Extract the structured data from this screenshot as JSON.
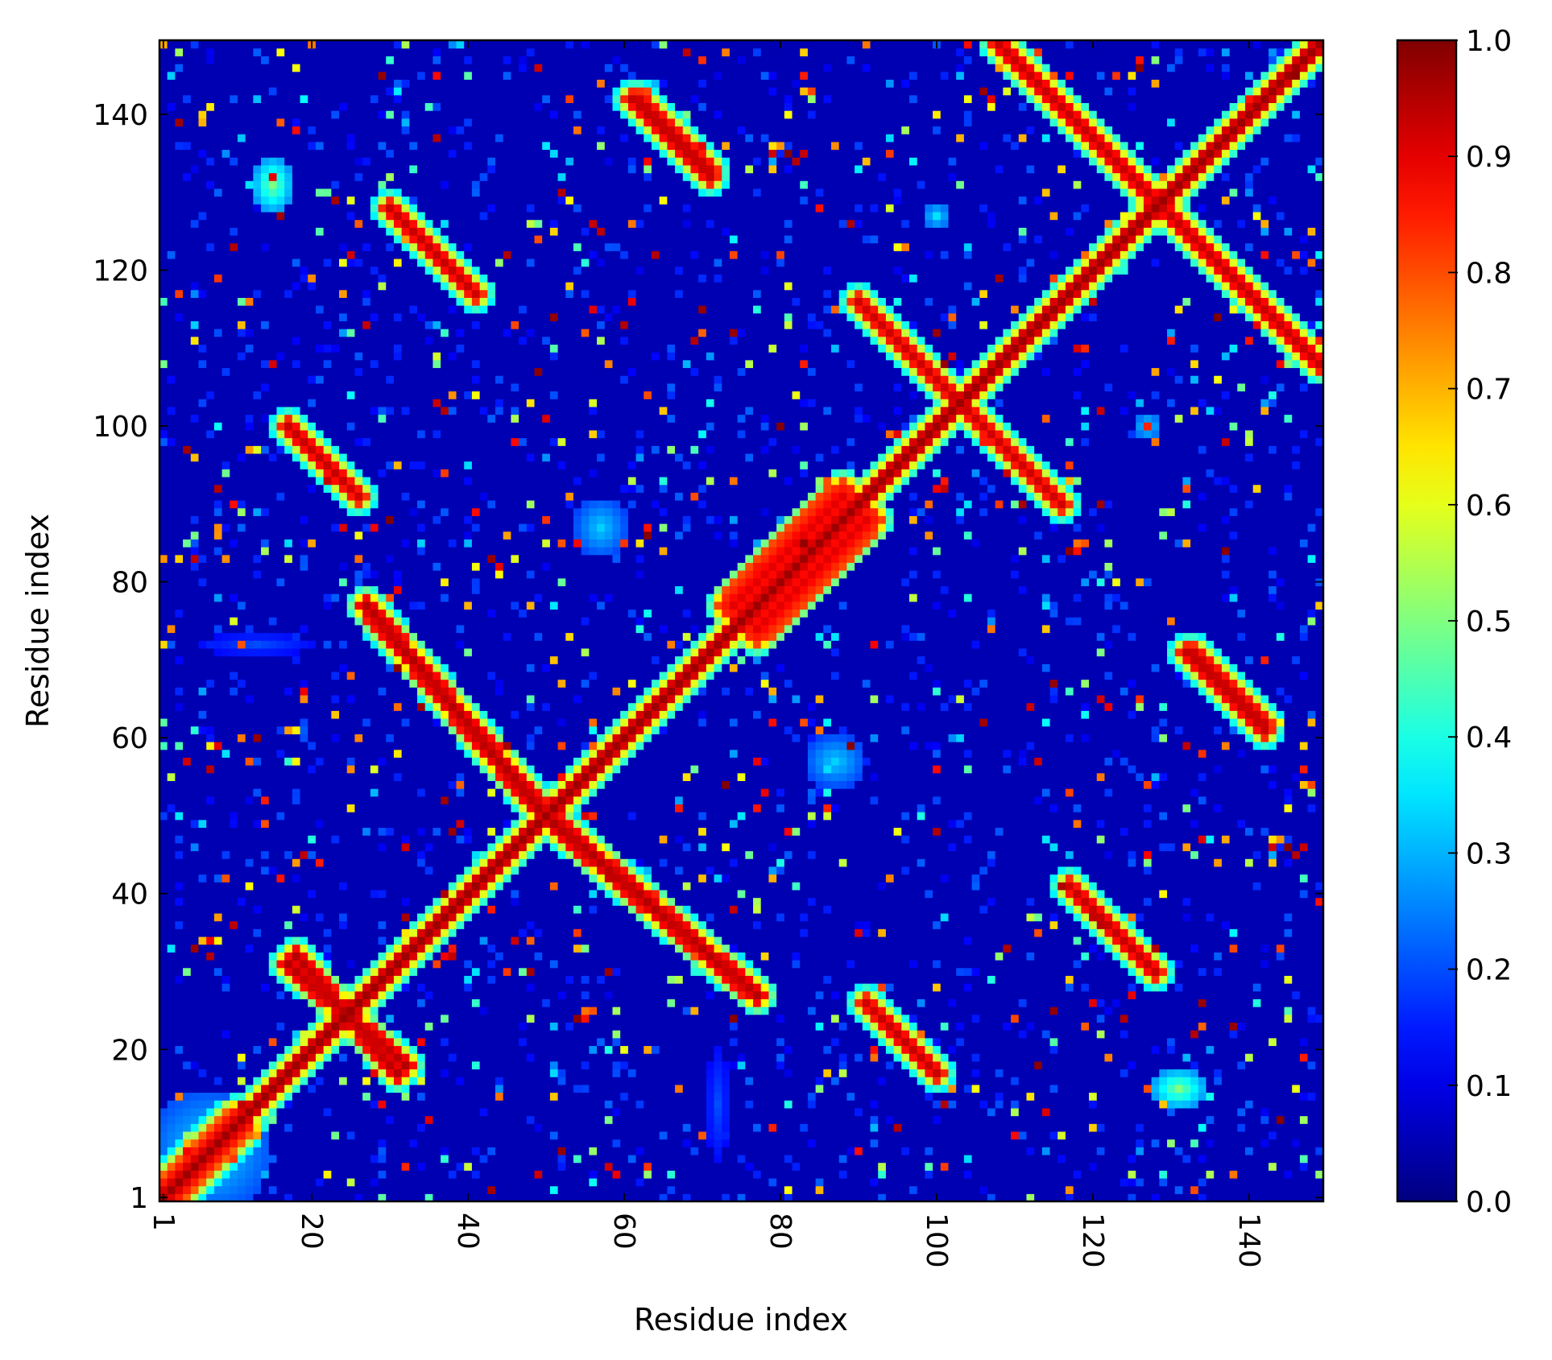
{
  "chart_data": {
    "type": "heatmap",
    "title": "",
    "xlabel": "Residue index",
    "ylabel": "Residue index",
    "n": 149,
    "xlim": [
      1,
      149
    ],
    "ylim": [
      1,
      149
    ],
    "x_ticks": [
      1,
      20,
      40,
      60,
      80,
      100,
      120,
      140
    ],
    "y_ticks": [
      1,
      20,
      40,
      60,
      80,
      100,
      120,
      140
    ],
    "colorbar": {
      "colormap": "jet",
      "range": [
        0.0,
        1.0
      ],
      "ticks": [
        "0.0",
        "0.1",
        "0.2",
        "0.3",
        "0.4",
        "0.5",
        "0.6",
        "0.7",
        "0.8",
        "0.9",
        "1.0"
      ]
    },
    "background_value": 0.05,
    "diagonal_band": {
      "width": 1,
      "value": 1.0
    },
    "contact_segments": [
      {
        "from": [
          1,
          1
        ],
        "to": [
          149,
          149
        ],
        "value": 0.97,
        "width": 1.2
      },
      {
        "from": [
          3,
          1
        ],
        "to": [
          12,
          10
        ],
        "value": 0.85,
        "width": 1.0
      },
      {
        "from": [
          1,
          3
        ],
        "to": [
          10,
          12
        ],
        "value": 0.85,
        "width": 1.0
      },
      {
        "from": [
          17,
          31
        ],
        "to": [
          32,
          18
        ],
        "value": 0.95,
        "width": 1.2
      },
      {
        "from": [
          31,
          17
        ],
        "to": [
          18,
          32
        ],
        "value": 0.95,
        "width": 1.2
      },
      {
        "from": [
          27,
          77
        ],
        "to": [
          49,
          51
        ],
        "value": 0.95,
        "width": 1.3
      },
      {
        "from": [
          77,
          27
        ],
        "to": [
          51,
          49
        ],
        "value": 0.95,
        "width": 1.3
      },
      {
        "from": [
          49,
          51
        ],
        "to": [
          77,
          27
        ],
        "value": 0.95,
        "width": 1.3
      },
      {
        "from": [
          51,
          49
        ],
        "to": [
          27,
          77
        ],
        "value": 0.95,
        "width": 1.3
      },
      {
        "from": [
          17,
          100
        ],
        "to": [
          24,
          93
        ],
        "value": 0.93,
        "width": 1.1
      },
      {
        "from": [
          100,
          17
        ],
        "to": [
          93,
          24
        ],
        "value": 0.93,
        "width": 1.1
      },
      {
        "from": [
          30,
          128
        ],
        "to": [
          40,
          118
        ],
        "value": 0.93,
        "width": 1.1
      },
      {
        "from": [
          128,
          30
        ],
        "to": [
          118,
          40
        ],
        "value": 0.93,
        "width": 1.1
      },
      {
        "from": [
          61,
          142
        ],
        "to": [
          71,
          132
        ],
        "value": 0.93,
        "width": 1.1
      },
      {
        "from": [
          142,
          61
        ],
        "to": [
          132,
          71
        ],
        "value": 0.93,
        "width": 1.1
      },
      {
        "from": [
          91,
          26
        ],
        "to": [
          99,
          18
        ],
        "value": 0.92,
        "width": 1.1
      },
      {
        "from": [
          26,
          91
        ],
        "to": [
          18,
          99
        ],
        "value": 0.92,
        "width": 1.1
      },
      {
        "from": [
          90,
          116
        ],
        "to": [
          104,
          102
        ],
        "value": 0.92,
        "width": 1.1
      },
      {
        "from": [
          116,
          90
        ],
        "to": [
          102,
          104
        ],
        "value": 0.92,
        "width": 1.1
      },
      {
        "from": [
          102,
          104
        ],
        "to": [
          116,
          90
        ],
        "value": 0.92,
        "width": 1.1
      },
      {
        "from": [
          104,
          102
        ],
        "to": [
          90,
          116
        ],
        "value": 0.92,
        "width": 1.1
      },
      {
        "from": [
          108,
          149
        ],
        "to": [
          149,
          108
        ],
        "value": 0.93,
        "width": 1.2
      },
      {
        "from": [
          117,
          41
        ],
        "to": [
          128,
          30
        ],
        "value": 0.92,
        "width": 1.1
      },
      {
        "from": [
          41,
          117
        ],
        "to": [
          30,
          128
        ],
        "value": 0.92,
        "width": 1.1
      },
      {
        "from": [
          133,
          71
        ],
        "to": [
          142,
          62
        ],
        "value": 0.92,
        "width": 1.1
      },
      {
        "from": [
          71,
          133
        ],
        "to": [
          62,
          142
        ],
        "value": 0.92,
        "width": 1.1
      },
      {
        "from": [
          74,
          77
        ],
        "to": [
          88,
          91
        ],
        "value": 0.9,
        "width": 2.2
      },
      {
        "from": [
          77,
          74
        ],
        "to": [
          91,
          88
        ],
        "value": 0.9,
        "width": 2.2
      }
    ],
    "blobs": [
      {
        "x": 15,
        "y": 131,
        "rx": 2.5,
        "ry": 3.5,
        "value": 0.45
      },
      {
        "x": 131,
        "y": 15,
        "rx": 3.5,
        "ry": 2.5,
        "value": 0.45
      },
      {
        "x": 57,
        "y": 87,
        "rx": 3.5,
        "ry": 4,
        "value": 0.28
      },
      {
        "x": 87,
        "y": 57,
        "rx": 4,
        "ry": 3.5,
        "value": 0.28
      },
      {
        "x": 7,
        "y": 7,
        "rx": 8,
        "ry": 8,
        "value": 0.3
      },
      {
        "x": 13,
        "y": 72,
        "rx": 8,
        "ry": 1.5,
        "value": 0.15
      },
      {
        "x": 72,
        "y": 13,
        "rx": 1.5,
        "ry": 8,
        "value": 0.15
      },
      {
        "x": 100,
        "y": 127,
        "rx": 2,
        "ry": 2,
        "value": 0.3
      },
      {
        "x": 127,
        "y": 100,
        "rx": 2,
        "ry": 2,
        "value": 0.3
      },
      {
        "x": 146,
        "y": 146,
        "rx": 3,
        "ry": 3,
        "value": 0.2
      }
    ],
    "speckle_density": 0.035
  }
}
